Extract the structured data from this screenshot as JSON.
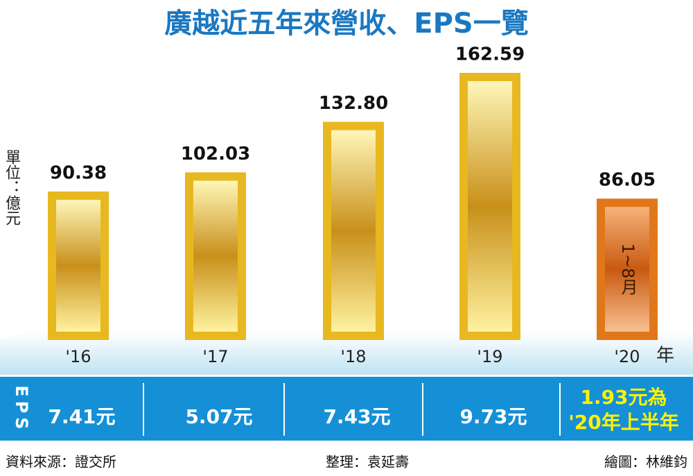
{
  "chart_data": {
    "type": "bar",
    "title": "廣越近五年來營收、EPS一覽",
    "y_label": "單位：億元",
    "x_unit": "年",
    "categories": [
      "'16",
      "'17",
      "'18",
      "'19",
      "'20"
    ],
    "values": [
      90.38,
      102.03,
      132.8,
      162.59,
      86.05
    ],
    "value_labels": [
      "90.38",
      "102.03",
      "132.80",
      "162.59",
      "86.05"
    ],
    "colors": [
      "#e8b820",
      "#e8b820",
      "#e8b820",
      "#e8b820",
      "#e0771a"
    ],
    "bar_note": "1~8月"
  },
  "eps": {
    "label": "EPS",
    "values": [
      7.41,
      5.07,
      7.43,
      9.73,
      1.93
    ],
    "value_labels": [
      "7.41元",
      "5.07元",
      "7.43元",
      "9.73元",
      "1.93元為"
    ],
    "note": "'20年上半年"
  },
  "footer": {
    "source": "資料來源：證交所",
    "editor": "整理：袁延壽",
    "artist": "繪圖：林維鈞"
  }
}
